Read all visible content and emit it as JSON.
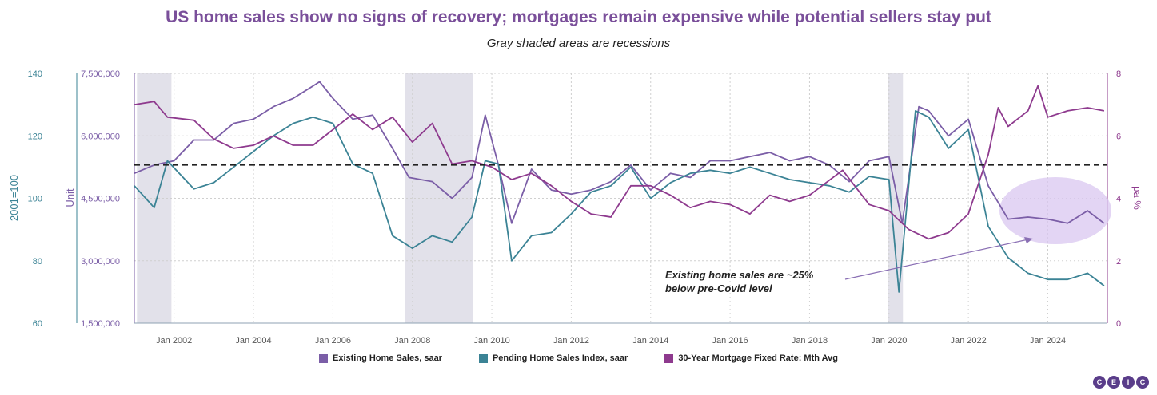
{
  "title": "US home sales show no signs of recovery; mortgages remain expensive while potential sellers stay put",
  "subtitle": "Gray shaded areas are recessions",
  "annotation": [
    "Existing home sales are ~25%",
    "below pre-Covid level"
  ],
  "legend": [
    {
      "label": "Existing Home Sales, saar",
      "color": "#7b5ea7"
    },
    {
      "label": "Pending Home Sales Index, saar",
      "color": "#3b8395"
    },
    {
      "label": "30-Year Mortgage Fixed Rate: Mth Avg",
      "color": "#8e3a8e"
    }
  ],
  "logo": [
    "C",
    "E",
    "I",
    "C"
  ],
  "chart_data": {
    "type": "line",
    "x_tick_labels": [
      "Jan 2002",
      "Jan 2004",
      "Jan 2006",
      "Jan 2008",
      "Jan 2010",
      "Jan 2012",
      "Jan 2014",
      "Jan 2016",
      "Jan 2018",
      "Jan 2020",
      "Jan 2022",
      "Jan 2024"
    ],
    "xlim": [
      "2001-01",
      "2025-07"
    ],
    "axes": {
      "index": {
        "label": "2001=100",
        "ticks": [
          "140",
          "120",
          "100",
          "80",
          "60"
        ],
        "range": [
          60,
          140
        ],
        "color": "#3b8395"
      },
      "unit": {
        "label": "Unit",
        "ticks": [
          "7,500,000",
          "6,000,000",
          "4,500,000",
          "3,000,000",
          "1,500,000"
        ],
        "range": [
          1500000,
          7500000
        ],
        "color": "#7b5ea7"
      },
      "rate": {
        "label": "pa %",
        "ticks": [
          "8",
          "6",
          "4",
          "2",
          "0"
        ],
        "range": [
          0,
          8
        ],
        "color": "#8e3a8e"
      }
    },
    "recessions": [
      [
        "2001-03",
        "2001-11"
      ],
      [
        "2007-12",
        "2009-06"
      ],
      [
        "2020-02",
        "2020-04"
      ]
    ],
    "reference_line": {
      "axis": "unit",
      "value": 5300000,
      "style": "dashed"
    },
    "series": [
      {
        "name": "Existing Home Sales, saar",
        "axis": "unit",
        "color": "#7b5ea7",
        "points": [
          [
            "2001-01",
            5100000
          ],
          [
            "2001-07",
            5300000
          ],
          [
            "2002-01",
            5400000
          ],
          [
            "2002-07",
            5900000
          ],
          [
            "2003-01",
            5900000
          ],
          [
            "2003-07",
            6300000
          ],
          [
            "2004-01",
            6400000
          ],
          [
            "2004-07",
            6700000
          ],
          [
            "2005-01",
            6900000
          ],
          [
            "2005-07",
            7200000
          ],
          [
            "2005-09",
            7300000
          ],
          [
            "2006-01",
            6900000
          ],
          [
            "2006-07",
            6400000
          ],
          [
            "2007-01",
            6500000
          ],
          [
            "2007-07",
            5700000
          ],
          [
            "2007-12",
            5000000
          ],
          [
            "2008-07",
            4900000
          ],
          [
            "2009-01",
            4500000
          ],
          [
            "2009-07",
            5000000
          ],
          [
            "2009-11",
            6500000
          ],
          [
            "2010-03",
            5300000
          ],
          [
            "2010-07",
            3900000
          ],
          [
            "2011-01",
            5200000
          ],
          [
            "2011-07",
            4700000
          ],
          [
            "2012-01",
            4600000
          ],
          [
            "2012-07",
            4700000
          ],
          [
            "2013-01",
            4900000
          ],
          [
            "2013-07",
            5300000
          ],
          [
            "2014-01",
            4700000
          ],
          [
            "2014-07",
            5100000
          ],
          [
            "2015-01",
            5000000
          ],
          [
            "2015-07",
            5400000
          ],
          [
            "2016-01",
            5400000
          ],
          [
            "2016-07",
            5500000
          ],
          [
            "2017-01",
            5600000
          ],
          [
            "2017-07",
            5400000
          ],
          [
            "2018-01",
            5500000
          ],
          [
            "2018-07",
            5300000
          ],
          [
            "2019-01",
            4900000
          ],
          [
            "2019-07",
            5400000
          ],
          [
            "2020-01",
            5500000
          ],
          [
            "2020-05",
            3900000
          ],
          [
            "2020-10",
            6700000
          ],
          [
            "2021-01",
            6600000
          ],
          [
            "2021-07",
            6000000
          ],
          [
            "2022-01",
            6400000
          ],
          [
            "2022-07",
            4800000
          ],
          [
            "2023-01",
            4000000
          ],
          [
            "2023-07",
            4050000
          ],
          [
            "2024-01",
            4000000
          ],
          [
            "2024-07",
            3900000
          ],
          [
            "2025-01",
            4200000
          ],
          [
            "2025-06",
            3900000
          ]
        ]
      },
      {
        "name": "Pending Home Sales Index, saar",
        "axis": "index",
        "color": "#3b8395",
        "points": [
          [
            "2001-01",
            104
          ],
          [
            "2001-07",
            97
          ],
          [
            "2001-11",
            112
          ],
          [
            "2002-07",
            103
          ],
          [
            "2003-01",
            105
          ],
          [
            "2003-07",
            110
          ],
          [
            "2004-01",
            115
          ],
          [
            "2004-07",
            120
          ],
          [
            "2005-01",
            124
          ],
          [
            "2005-07",
            126
          ],
          [
            "2006-01",
            124
          ],
          [
            "2006-07",
            111
          ],
          [
            "2007-01",
            108
          ],
          [
            "2007-07",
            88
          ],
          [
            "2008-01",
            84
          ],
          [
            "2008-07",
            88
          ],
          [
            "2009-01",
            86
          ],
          [
            "2009-07",
            94
          ],
          [
            "2009-11",
            112
          ],
          [
            "2010-03",
            111
          ],
          [
            "2010-07",
            80
          ],
          [
            "2011-01",
            88
          ],
          [
            "2011-07",
            89
          ],
          [
            "2012-01",
            95
          ],
          [
            "2012-07",
            102
          ],
          [
            "2013-01",
            104
          ],
          [
            "2013-07",
            110
          ],
          [
            "2014-01",
            100
          ],
          [
            "2014-07",
            105
          ],
          [
            "2015-01",
            108
          ],
          [
            "2015-07",
            109
          ],
          [
            "2016-01",
            108
          ],
          [
            "2016-07",
            110
          ],
          [
            "2017-01",
            108
          ],
          [
            "2017-07",
            106
          ],
          [
            "2018-01",
            105
          ],
          [
            "2018-07",
            104
          ],
          [
            "2019-01",
            102
          ],
          [
            "2019-07",
            107
          ],
          [
            "2020-01",
            106
          ],
          [
            "2020-04",
            70
          ],
          [
            "2020-09",
            128
          ],
          [
            "2021-01",
            126
          ],
          [
            "2021-07",
            116
          ],
          [
            "2022-01",
            122
          ],
          [
            "2022-07",
            91
          ],
          [
            "2023-01",
            81
          ],
          [
            "2023-07",
            76
          ],
          [
            "2024-01",
            74
          ],
          [
            "2024-07",
            74
          ],
          [
            "2025-01",
            76
          ],
          [
            "2025-06",
            72
          ]
        ]
      },
      {
        "name": "30-Year Mortgage Fixed Rate: Mth Avg",
        "axis": "rate",
        "color": "#8e3a8e",
        "points": [
          [
            "2001-01",
            7.0
          ],
          [
            "2001-07",
            7.1
          ],
          [
            "2001-11",
            6.6
          ],
          [
            "2002-07",
            6.5
          ],
          [
            "2003-01",
            5.9
          ],
          [
            "2003-07",
            5.6
          ],
          [
            "2004-01",
            5.7
          ],
          [
            "2004-07",
            6.0
          ],
          [
            "2005-01",
            5.7
          ],
          [
            "2005-07",
            5.7
          ],
          [
            "2006-01",
            6.2
          ],
          [
            "2006-07",
            6.7
          ],
          [
            "2007-01",
            6.2
          ],
          [
            "2007-07",
            6.6
          ],
          [
            "2008-01",
            5.8
          ],
          [
            "2008-07",
            6.4
          ],
          [
            "2009-01",
            5.1
          ],
          [
            "2009-07",
            5.2
          ],
          [
            "2010-01",
            5.0
          ],
          [
            "2010-07",
            4.6
          ],
          [
            "2011-01",
            4.8
          ],
          [
            "2011-07",
            4.4
          ],
          [
            "2012-01",
            3.9
          ],
          [
            "2012-07",
            3.5
          ],
          [
            "2013-01",
            3.4
          ],
          [
            "2013-07",
            4.4
          ],
          [
            "2014-01",
            4.4
          ],
          [
            "2014-07",
            4.1
          ],
          [
            "2015-01",
            3.7
          ],
          [
            "2015-07",
            3.9
          ],
          [
            "2016-01",
            3.8
          ],
          [
            "2016-07",
            3.5
          ],
          [
            "2017-01",
            4.1
          ],
          [
            "2017-07",
            3.9
          ],
          [
            "2018-01",
            4.1
          ],
          [
            "2018-11",
            4.9
          ],
          [
            "2019-07",
            3.8
          ],
          [
            "2020-01",
            3.6
          ],
          [
            "2020-07",
            3.0
          ],
          [
            "2021-01",
            2.7
          ],
          [
            "2021-07",
            2.9
          ],
          [
            "2022-01",
            3.5
          ],
          [
            "2022-07",
            5.4
          ],
          [
            "2022-10",
            6.9
          ],
          [
            "2023-01",
            6.3
          ],
          [
            "2023-07",
            6.8
          ],
          [
            "2023-10",
            7.6
          ],
          [
            "2024-01",
            6.6
          ],
          [
            "2024-07",
            6.8
          ],
          [
            "2025-01",
            6.9
          ],
          [
            "2025-06",
            6.8
          ]
        ]
      }
    ]
  }
}
